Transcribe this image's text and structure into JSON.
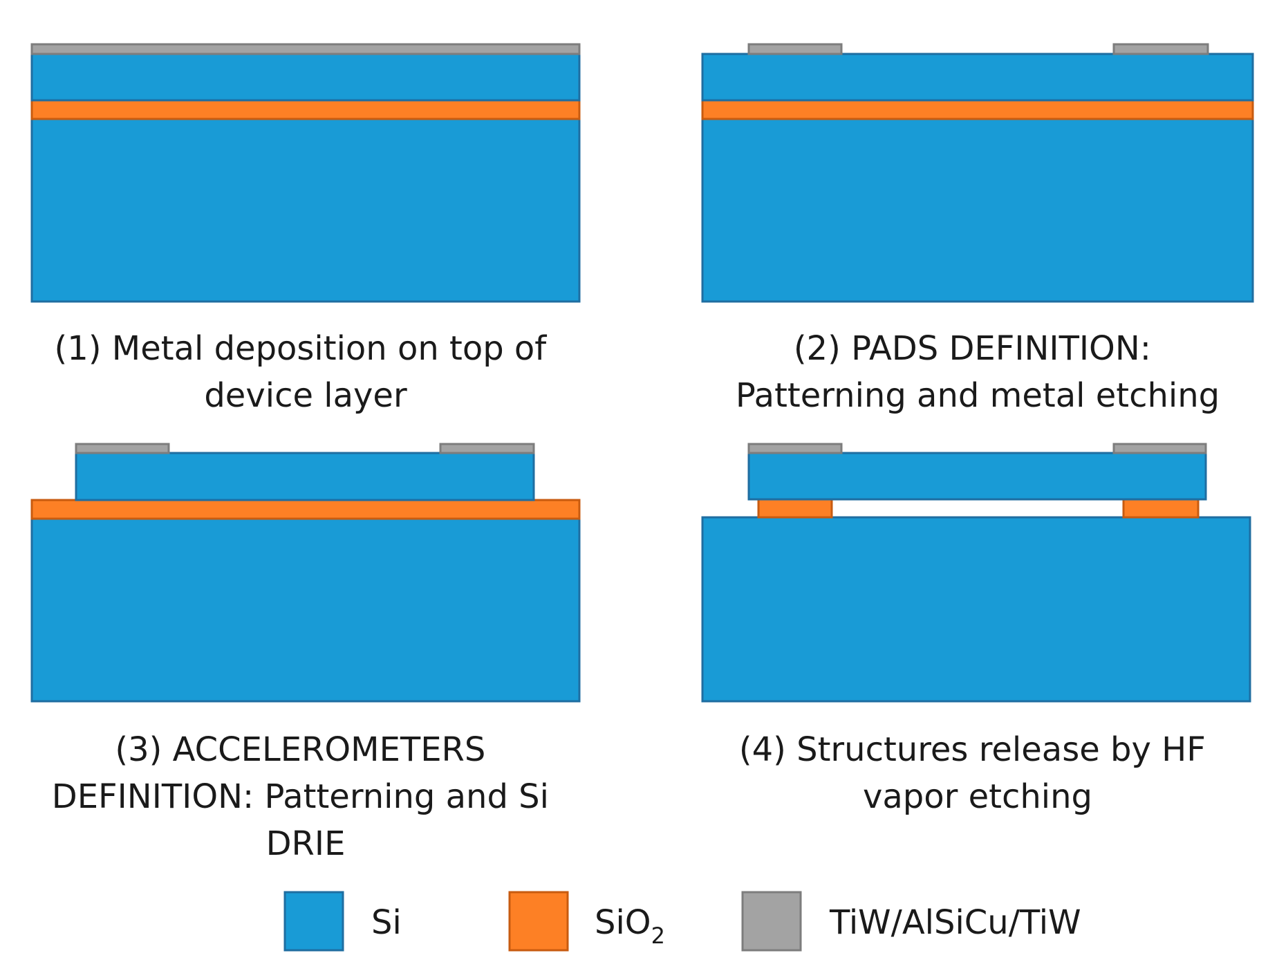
{
  "colors": {
    "si": "#199bd6",
    "sio2": "#fd8025",
    "metal": "#a3a3a3"
  },
  "steps": [
    {
      "number": "(1)",
      "caption_lines": [
        "(1) Metal deposition on top of",
        "device layer"
      ]
    },
    {
      "number": "(2)",
      "caption_lines": [
        "(2) PADS DEFINITION:",
        "Patterning and metal etching"
      ]
    },
    {
      "number": "(3)",
      "caption_lines": [
        "(3) ACCELEROMETERS",
        "DEFINITION: Patterning and Si",
        "DRIE"
      ]
    },
    {
      "number": "(4)",
      "caption_lines": [
        "(4) Structures release by HF",
        "vapor etching"
      ]
    }
  ],
  "legend": {
    "si_label": "Si",
    "sio2_label_base": "SiO",
    "sio2_label_sub": "2",
    "metal_label": "TiW/AlSiCu/TiW"
  }
}
